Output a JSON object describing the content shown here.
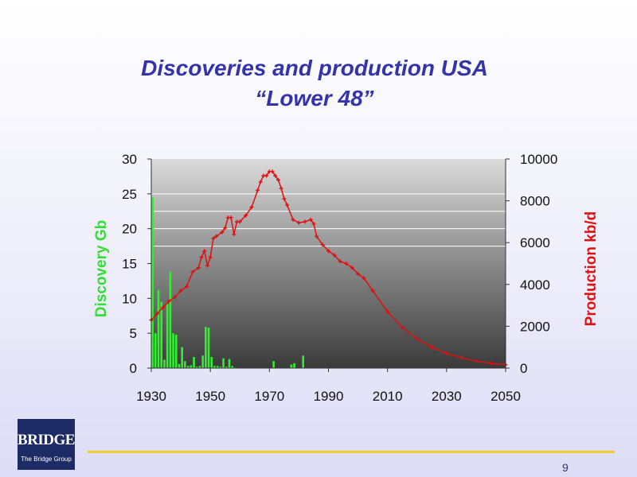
{
  "slide": {
    "title_line1": "Discoveries and production USA",
    "title_line2": "“Lower 48”",
    "page_number": "9"
  },
  "logo": {
    "word": "BRIDGE",
    "subtitle": "The Bridge Group"
  },
  "colors": {
    "title": "#3333aa",
    "discovery_bars": "#33ee33",
    "production_line": "#dd1111",
    "rule": "#f2cc2a"
  },
  "chart_data": {
    "type": "bar",
    "title": "",
    "xlabel": "",
    "ylabel_left": "Discovery Gb",
    "ylabel_right": "Production kb/d",
    "xlim": [
      1930,
      2050
    ],
    "ylim_left": [
      0,
      30
    ],
    "ylim_right": [
      0,
      10000
    ],
    "x_ticks": [
      1930,
      1950,
      1970,
      1990,
      2010,
      2030,
      2050
    ],
    "y_ticks_left": [
      0,
      5,
      10,
      15,
      20,
      25,
      30
    ],
    "y_ticks_right": [
      0,
      2000,
      4000,
      6000,
      8000,
      10000
    ],
    "grid": "horizontal lines at left-axis 17.5, 20, 22.5 and 25",
    "series": [
      {
        "name": "Discovery Gb",
        "type": "bar",
        "axis": "left",
        "color": "#33ee33",
        "x": [
          1930,
          1931,
          1932,
          1933,
          1934,
          1935,
          1936,
          1937,
          1938,
          1939,
          1940,
          1941,
          1942,
          1943,
          1944,
          1945,
          1946,
          1947,
          1948,
          1949,
          1950,
          1951,
          1952,
          1953,
          1954,
          1955,
          1956,
          1957,
          1958,
          1971,
          1977,
          1978,
          1981
        ],
        "values": [
          24.5,
          5,
          11.2,
          9.5,
          1.2,
          9.2,
          13.8,
          5,
          4.8,
          0.6,
          3,
          1,
          0.3,
          0.4,
          1.6,
          0.2,
          0.3,
          1.8,
          5.9,
          5.8,
          1.6,
          0.3,
          0.3,
          0.2,
          1.4,
          0.2,
          1.3,
          0.3,
          0.1,
          1,
          0.5,
          0.7,
          1.8
        ]
      },
      {
        "name": "Production kb/d",
        "type": "line",
        "axis": "right",
        "color": "#dd1111",
        "x": [
          1930,
          1932,
          1934,
          1936,
          1938,
          1940,
          1942,
          1944,
          1946,
          1947,
          1948,
          1949,
          1950,
          1951,
          1952,
          1954,
          1955,
          1956,
          1957,
          1958,
          1959,
          1960,
          1962,
          1964,
          1966,
          1967,
          1968,
          1969,
          1970,
          1971,
          1972,
          1973,
          1974,
          1975,
          1976,
          1978,
          1980,
          1982,
          1984,
          1985,
          1986,
          1988,
          1990,
          1992,
          1994,
          1996,
          1998,
          2000,
          2002,
          2005,
          2010,
          2015,
          2020,
          2025,
          2030,
          2035,
          2040,
          2045,
          2050
        ],
        "values": [
          2300,
          2600,
          2900,
          3200,
          3400,
          3700,
          3900,
          4600,
          4800,
          5300,
          5600,
          4900,
          5300,
          6200,
          6300,
          6500,
          6700,
          7200,
          7200,
          6400,
          7000,
          7000,
          7300,
          7700,
          8500,
          8900,
          9200,
          9200,
          9400,
          9400,
          9200,
          9000,
          8600,
          8100,
          7800,
          7100,
          6950,
          7000,
          7100,
          6900,
          6300,
          5900,
          5600,
          5400,
          5100,
          5000,
          4800,
          4500,
          4300,
          3700,
          2700,
          1950,
          1400,
          1000,
          700,
          500,
          330,
          230,
          160
        ]
      }
    ]
  }
}
